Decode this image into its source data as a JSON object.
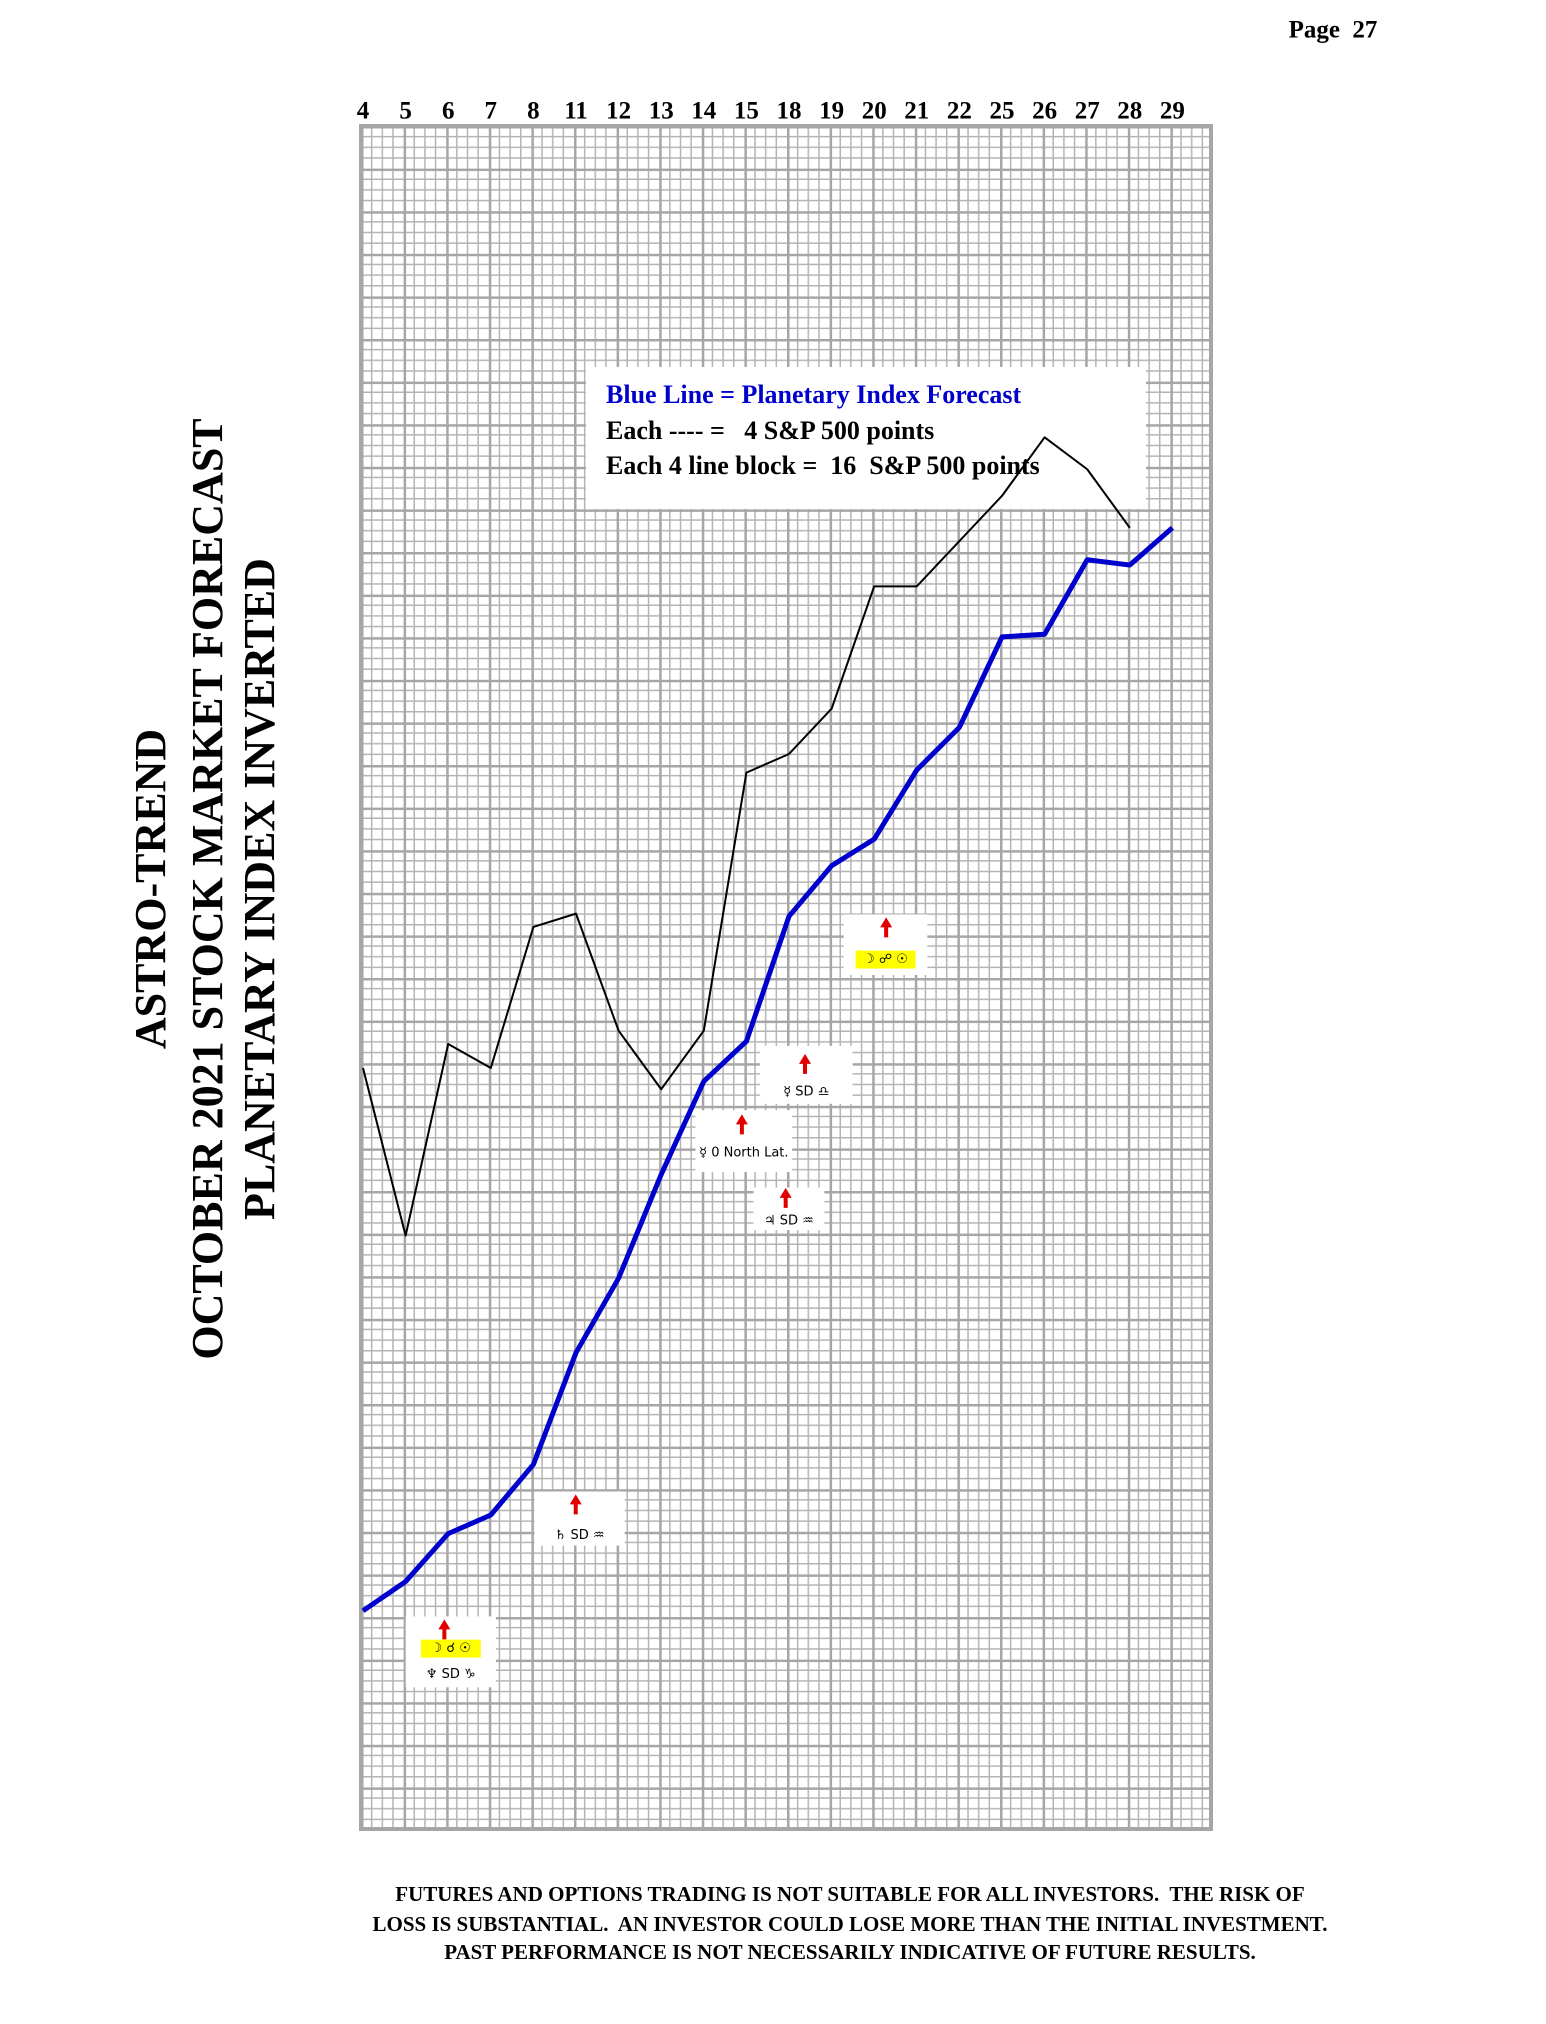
{
  "page": "Page  27",
  "chart_data": {
    "type": "line",
    "title": [
      "ASTRO-TREND",
      "OCTOBER 2021 STOCK MARKET FORECAST",
      "PLANETARY INDEX INVERTED"
    ],
    "categories": [
      "4",
      "5",
      "6",
      "7",
      "8",
      "11",
      "12",
      "13",
      "14",
      "15",
      "18",
      "19",
      "20",
      "21",
      "22",
      "25",
      "26",
      "27",
      "28",
      "29"
    ],
    "ylim": [
      0,
      640
    ],
    "series": [
      {
        "color": "#0000cc",
        "values": [
          82,
          93,
          111,
          118,
          137,
          179,
          207,
          246,
          281,
          296,
          343,
          362,
          372,
          398,
          414,
          448,
          449,
          477,
          475,
          489
        ]
      },
      {
        "color": "#000000",
        "values": [
          286,
          223,
          295,
          286,
          339,
          344,
          300,
          278,
          300,
          397,
          404,
          421,
          467,
          467,
          484,
          501,
          523,
          511,
          489,
          null
        ]
      }
    ],
    "legend_text": [
      "Blue Line = Planetary Index Forecast",
      "Each ---- =   4 S&P 500 points",
      "Each 4 line block =  16  S&P 500 points"
    ],
    "annotations": [
      {
        "lines": [
          "☽ ☌ ☉",
          "♆ SD ♑"
        ]
      },
      {
        "lines": [
          "♄ SD ♒"
        ]
      },
      {
        "lines": [
          "☿ 0 North Lat."
        ]
      },
      {
        "lines": [
          "♃ SD ♒"
        ]
      },
      {
        "lines": [
          "☿ SD ♎"
        ]
      },
      {
        "lines": [
          "☽ ☍ ☉"
        ]
      }
    ]
  },
  "disclaimer": [
    "FUTURES AND OPTIONS TRADING IS NOT SUITABLE FOR ALL INVESTORS.  THE RISK OF",
    "LOSS IS SUBSTANTIAL.  AN INVESTOR COULD LOSE MORE THAN THE INITIAL INVESTMENT.",
    "PAST PERFORMANCE IS NOT NECESSARILY INDICATIVE OF FUTURE RESULTS."
  ]
}
